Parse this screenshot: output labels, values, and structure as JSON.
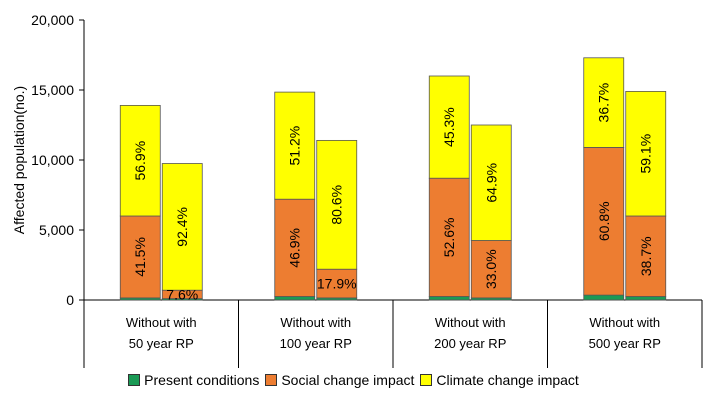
{
  "chart_data": {
    "type": "bar",
    "stacked": true,
    "ylabel": "Affected population(no.)",
    "ylim": [
      0,
      20000
    ],
    "yticks": [
      0,
      5000,
      10000,
      15000,
      20000
    ],
    "ytick_labels": [
      "0",
      "5,000",
      "10,000",
      "15,000",
      "20,000"
    ],
    "groups": [
      {
        "label_line1": "Without with",
        "label_line2": "50 year RP"
      },
      {
        "label_line1": "Without with",
        "label_line2": "100 year RP"
      },
      {
        "label_line1": "Without with",
        "label_line2": "200 year RP"
      },
      {
        "label_line1": "Without with",
        "label_line2": "500 year RP"
      }
    ],
    "series": [
      {
        "name": "Present conditions",
        "color": "#1a9a55",
        "values": [
          150,
          100,
          250,
          150,
          250,
          150,
          350,
          250
        ],
        "labels": [
          "",
          "",
          "",
          "",
          "",
          "",
          "",
          ""
        ]
      },
      {
        "name": "Social change impact",
        "color": "#ed7d31",
        "values": [
          5850,
          600,
          6950,
          2050,
          8450,
          4100,
          10550,
          5750
        ],
        "labels": [
          "41.5%",
          "7.6%",
          "46.9%",
          "17.9%",
          "52.6%",
          "33.0%",
          "60.8%",
          "38.7%"
        ]
      },
      {
        "name": "Climate change impact",
        "color": "#ffff00",
        "values": [
          7900,
          9050,
          7650,
          9200,
          7300,
          8250,
          6400,
          8900
        ],
        "labels": [
          "56.9%",
          "92.4%",
          "51.2%",
          "80.6%",
          "45.3%",
          "64.9%",
          "36.7%",
          "59.1%"
        ]
      }
    ],
    "grid": false,
    "legend_position": "bottom"
  }
}
